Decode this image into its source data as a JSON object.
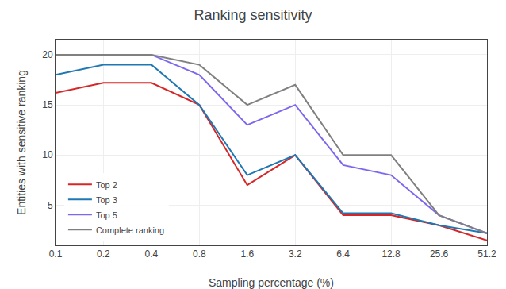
{
  "chart_data": {
    "type": "line",
    "title": "Ranking sensitivity",
    "x_label": "Sampling percentage (%)",
    "y_label": "Entities with sensitive ranking",
    "categories": [
      "0.1",
      "0.2",
      "0.4",
      "0.8",
      "1.6",
      "3.2",
      "6.4",
      "12.8",
      "25.6",
      "51.2"
    ],
    "series": [
      {
        "name": "Top 2",
        "color": "#d62728",
        "values": [
          16.2,
          17.2,
          17.2,
          15.0,
          7.0,
          10.0,
          4.0,
          4.0,
          3.0,
          1.5
        ]
      },
      {
        "name": "Top 3",
        "color": "#1f77b4",
        "values": [
          18.0,
          19.0,
          19.0,
          15.0,
          8.0,
          10.0,
          4.2,
          4.2,
          3.0,
          2.2
        ]
      },
      {
        "name": "Top 5",
        "color": "#7b68ee",
        "values": [
          20.0,
          20.0,
          20.0,
          18.0,
          13.0,
          15.0,
          9.0,
          8.0,
          4.0,
          2.2
        ]
      },
      {
        "name": "Complete ranking",
        "color": "#808080",
        "values": [
          20.0,
          20.0,
          20.0,
          19.0,
          15.0,
          17.0,
          10.0,
          10.0,
          4.0,
          2.2
        ]
      }
    ],
    "ylim": [
      1.0,
      21.5
    ],
    "yticks": [
      5,
      10,
      15,
      20
    ],
    "grid": true,
    "legend": "lower left"
  }
}
